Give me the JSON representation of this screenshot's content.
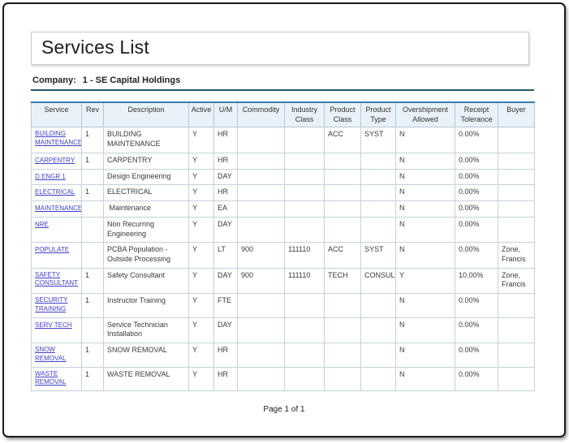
{
  "colors": {
    "frame_border": "#1a1a1a",
    "company_rule": "#215968",
    "table_top_border": "#3e7ca8",
    "header_background": "#e9f2f8",
    "cell_border": "#c6d1d9",
    "link_blue": "#4141c9"
  },
  "page": {
    "title": "Services List",
    "company_label": "Company:",
    "company_value": "1 - SE Capital Holdings",
    "footer": "Page 1 of 1"
  },
  "table": {
    "columns": [
      "Service",
      "Rev",
      "Description",
      "Active",
      "U/M",
      "Commodity",
      "Industry Class",
      "Product Class",
      "Product Type",
      "Overshipment Allowed",
      "Receipt Tolerance",
      "Buyer"
    ],
    "rows": [
      {
        "service": "BUILDING MAINTENANCE",
        "rev": "1",
        "description": "BUILDING MAINTENANCE",
        "active": "Y",
        "um": "HR",
        "commodity": "",
        "industry_class": "",
        "product_class": "ACC",
        "product_type": "SYST",
        "overshipment_allowed": "N",
        "receipt_tolerance": "0.00%",
        "buyer": ""
      },
      {
        "service": "CARPENTRY",
        "rev": "1",
        "description": "CARPENTRY",
        "active": "Y",
        "um": "HR",
        "commodity": "",
        "industry_class": "",
        "product_class": "",
        "product_type": "",
        "overshipment_allowed": "N",
        "receipt_tolerance": "0.00%",
        "buyer": ""
      },
      {
        "service": "D ENGR 1",
        "rev": "",
        "description": "Design Engineering",
        "active": "Y",
        "um": "DAY",
        "commodity": "",
        "industry_class": "",
        "product_class": "",
        "product_type": "",
        "overshipment_allowed": "N",
        "receipt_tolerance": "0.00%",
        "buyer": ""
      },
      {
        "service": "ELECTRICAL",
        "rev": "1",
        "description": "ELECTRICAL",
        "active": "Y",
        "um": "HR",
        "commodity": "",
        "industry_class": "",
        "product_class": "",
        "product_type": "",
        "overshipment_allowed": "N",
        "receipt_tolerance": "0.00%",
        "buyer": ""
      },
      {
        "service": "MAINTENANCE",
        "rev": "",
        "description": " Maintenance",
        "active": "Y",
        "um": "EA",
        "commodity": "",
        "industry_class": "",
        "product_class": "",
        "product_type": "",
        "overshipment_allowed": "N",
        "receipt_tolerance": "0.00%",
        "buyer": ""
      },
      {
        "service": "NRE",
        "rev": "",
        "description": "Non Recurring Engineering",
        "active": "Y",
        "um": "DAY",
        "commodity": "",
        "industry_class": "",
        "product_class": "",
        "product_type": "",
        "overshipment_allowed": "N",
        "receipt_tolerance": "0.00%",
        "buyer": ""
      },
      {
        "service": "POPULATE",
        "rev": "",
        "description": "PCBA Population - Outside Processing",
        "active": "Y",
        "um": "LT",
        "commodity": "900",
        "industry_class": "111110",
        "product_class": "ACC",
        "product_type": "SYST",
        "overshipment_allowed": "N",
        "receipt_tolerance": "0.00%",
        "buyer": "Zone, Francis"
      },
      {
        "service": "SAFETY CONSULTANT",
        "rev": "1",
        "description": "Safety Consultant",
        "active": "Y",
        "um": "DAY",
        "commodity": "900",
        "industry_class": "111110",
        "product_class": "TECH",
        "product_type": "CONSUL",
        "overshipment_allowed": "Y",
        "receipt_tolerance": "10.00%",
        "buyer": "Zone, Francis"
      },
      {
        "service": "SECURITY TRAINING",
        "rev": "1",
        "description": "Instructor Training",
        "active": "Y",
        "um": "FTE",
        "commodity": "",
        "industry_class": "",
        "product_class": "",
        "product_type": "",
        "overshipment_allowed": "N",
        "receipt_tolerance": "0.00%",
        "buyer": ""
      },
      {
        "service": "SERV TECH",
        "rev": "",
        "description": "Service Technician Installation",
        "active": "Y",
        "um": "DAY",
        "commodity": "",
        "industry_class": "",
        "product_class": "",
        "product_type": "",
        "overshipment_allowed": "N",
        "receipt_tolerance": "0.00%",
        "buyer": ""
      },
      {
        "service": "SNOW REMOVAL",
        "rev": "1",
        "description": "SNOW REMOVAL",
        "active": "Y",
        "um": "HR",
        "commodity": "",
        "industry_class": "",
        "product_class": "",
        "product_type": "",
        "overshipment_allowed": "N",
        "receipt_tolerance": "0.00%",
        "buyer": ""
      },
      {
        "service": "WASTE REMOVAL",
        "rev": "1",
        "description": "WASTE REMOVAL",
        "active": "Y",
        "um": "HR",
        "commodity": "",
        "industry_class": "",
        "product_class": "",
        "product_type": "",
        "overshipment_allowed": "N",
        "receipt_tolerance": "0.00%",
        "buyer": ""
      }
    ]
  }
}
